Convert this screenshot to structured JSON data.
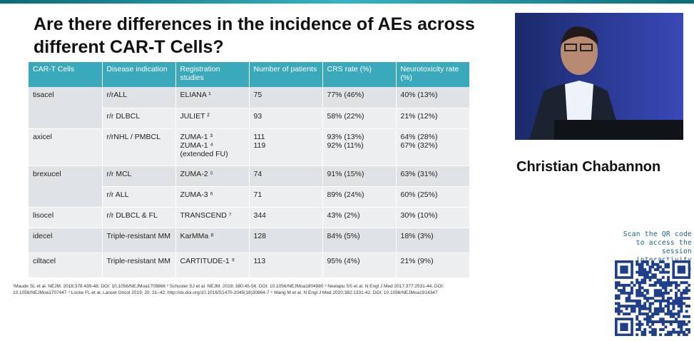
{
  "slide": {
    "title": "Are there differences in the incidence of AEs across different CAR-T Cells?",
    "table": {
      "header": [
        "CAR-T Cells",
        "Disease indication",
        "Registration studies",
        "Number of patients",
        "CRS rate (%)",
        "Neurotoxicity rate (%)"
      ],
      "groups": [
        {
          "drug": "tisacel",
          "rows": [
            [
              "r/rALL",
              "ELIANA ¹",
              "75",
              "77% (46%)",
              "40% (13%)"
            ],
            [
              "r/r DLBCL",
              "JULIET ²",
              "93",
              "58% (22%)",
              "21% (12%)"
            ]
          ]
        },
        {
          "drug": "axicel",
          "rows": [
            [
              "r/rNHL / PMBCL",
              "ZUMA-1 ³\nZUMA-1 ⁴\n(extended FU)",
              "111\n119",
              "93% (13%)\n92% (11%)",
              "64% (28%)\n67% (32%)"
            ]
          ]
        },
        {
          "drug": "brexucel",
          "rows": [
            [
              "r/r MCL",
              "ZUMA-2 ⁵",
              "74",
              "91% (15%)",
              "63% (31%)"
            ],
            [
              "r/r ALL",
              "ZUMA-3 ⁶",
              "71",
              "89% (24%)",
              "60% (25%)"
            ]
          ]
        },
        {
          "drug": "lisocel",
          "rows": [
            [
              "r/r DLBCL & FL",
              "TRANSCEND ⁷",
              "344",
              "43% (2%)",
              "30% (10%)"
            ]
          ]
        },
        {
          "drug": "idecel",
          "rows": [
            [
              "Triple-resistant MM",
              "KarMMa ⁸",
              "128",
              "84% (5%)",
              "18% (3%)"
            ]
          ]
        },
        {
          "drug": "ciltacel",
          "rows": [
            [
              "Triple-resistant MM",
              "CARTITUDE-1 ⁹",
              "113",
              "95% (4%)",
              "21% (9%)"
            ]
          ]
        }
      ]
    },
    "footnotes": [
      "¹Maude SL et al. NEJM. 2018;378:439-48. DOI: 10.1056/NEJMoa1709866 ² Schuster SJ et al. NEJM. 2019; 380:45-56. DOI: 10.1056/NEJMoa1804980 ³ Neelapu SS et al. N Engl J Med 2017;377:2531-44. DOI:",
      "10.1056/NEJMoa1707447 ⁴ Locke FL et al. Lancet Oncol 2019; 20: 31–42. http://dx.doi.org/10.1016/S1470-2045(18)30864-7 ⁵ Wang M et al. N Engl J Med 2020;382:1331-42. DOI: 10.1056/NEJMoa1914347"
    ]
  },
  "speaker": {
    "name": "Christian Chabannon"
  },
  "qr": {
    "caption": "Scan the QR code to access the session interactivity features"
  }
}
